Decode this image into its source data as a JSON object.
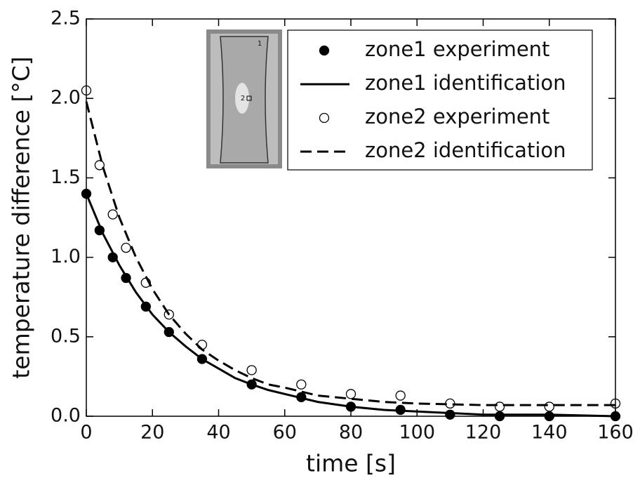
{
  "chart_data": {
    "type": "scatter-line",
    "x_label": "time [s]",
    "y_label": "temperature difference [°C]",
    "xlim": [
      0,
      160
    ],
    "xticks": [
      0,
      20,
      40,
      60,
      80,
      100,
      120,
      140,
      160
    ],
    "ylim": [
      0,
      2.5
    ],
    "yticks": [
      {
        "value": 0,
        "label": "0.0"
      },
      0.5,
      {
        "value": 1,
        "label": "1.0"
      },
      1.5,
      {
        "value": 2,
        "label": "2.0"
      },
      2.5
    ],
    "legend": "upper right",
    "inset": {
      "labels": [
        "1",
        "2"
      ]
    },
    "series": [
      {
        "name": "zone1 experiment",
        "kind": "marker",
        "filled": true,
        "color": "#000000",
        "x": [
          0,
          4,
          8,
          12,
          18,
          25,
          35,
          50,
          65,
          80,
          95,
          110,
          125,
          140,
          160
        ],
        "values": [
          1.4,
          1.17,
          1.0,
          0.87,
          0.69,
          0.53,
          0.36,
          0.2,
          0.12,
          0.06,
          0.04,
          0.01,
          0.0,
          0.0,
          0.0
        ]
      },
      {
        "name": "zone1 identification",
        "kind": "line",
        "dashed": false,
        "color": "#000000",
        "x": [
          0,
          5,
          10,
          15,
          20,
          25,
          30,
          35,
          40,
          45,
          50,
          55,
          60,
          70,
          80,
          90,
          100,
          120,
          140,
          160
        ],
        "values": [
          1.4,
          1.15,
          0.95,
          0.78,
          0.64,
          0.53,
          0.44,
          0.36,
          0.3,
          0.24,
          0.2,
          0.165,
          0.14,
          0.09,
          0.06,
          0.04,
          0.03,
          0.01,
          0.01,
          0.0
        ]
      },
      {
        "name": "zone2 experiment",
        "kind": "marker",
        "filled": false,
        "color": "#000000",
        "x": [
          0,
          4,
          8,
          12,
          18,
          25,
          35,
          50,
          65,
          80,
          95,
          110,
          125,
          140,
          160
        ],
        "values": [
          2.05,
          1.58,
          1.27,
          1.06,
          0.84,
          0.64,
          0.45,
          0.29,
          0.2,
          0.14,
          0.13,
          0.08,
          0.06,
          0.06,
          0.08
        ]
      },
      {
        "name": "zone2 identification",
        "kind": "line",
        "dashed": true,
        "color": "#000000",
        "x": [
          0,
          5,
          10,
          15,
          20,
          25,
          30,
          35,
          40,
          45,
          50,
          55,
          60,
          70,
          80,
          90,
          100,
          120,
          140,
          160
        ],
        "values": [
          1.98,
          1.57,
          1.25,
          1.0,
          0.8,
          0.64,
          0.52,
          0.42,
          0.35,
          0.29,
          0.24,
          0.2,
          0.18,
          0.13,
          0.11,
          0.09,
          0.08,
          0.07,
          0.07,
          0.07
        ]
      }
    ]
  }
}
